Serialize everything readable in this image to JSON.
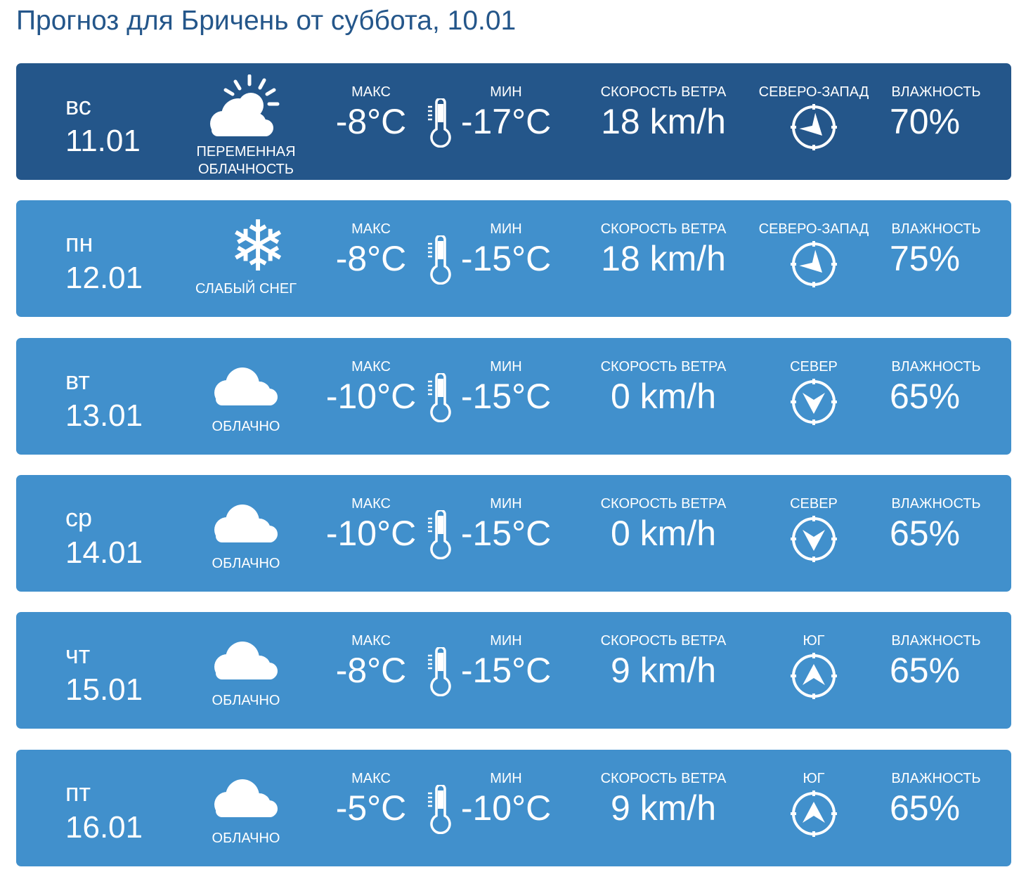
{
  "title": "Прогноз для Бричень от суббота, 10.01",
  "labels": {
    "max": "МАКС",
    "min": "МИН",
    "wind_speed": "СКОРОСТЬ ВЕТРА",
    "humidity": "ВЛАЖНОСТЬ"
  },
  "colors": {
    "current_row": "#24568a",
    "row": "#4190cc",
    "title": "#24568a"
  },
  "days": [
    {
      "day": "вс",
      "date": "11.01",
      "icon": "partly-cloudy-icon",
      "condition": "ПЕРЕМЕННАЯ ОБЛАЧНОСТЬ",
      "max": "-8°C",
      "min": "-17°C",
      "wind": "18 km/h",
      "direction": "СЕВЕРО-ЗАПАД",
      "direction_deg": 315,
      "humidity": "70%",
      "current": true
    },
    {
      "day": "пн",
      "date": "12.01",
      "icon": "snowflake-icon",
      "condition": "СЛАБЫЙ СНЕГ",
      "max": "-8°C",
      "min": "-15°C",
      "wind": "18 km/h",
      "direction": "СЕВЕРО-ЗАПАД",
      "direction_deg": 315,
      "humidity": "75%"
    },
    {
      "day": "вт",
      "date": "13.01",
      "icon": "cloud-icon",
      "condition": "ОБЛАЧНО",
      "max": "-10°C",
      "min": "-15°C",
      "wind": "0 km/h",
      "direction": "СЕВЕР",
      "direction_deg": 0,
      "humidity": "65%"
    },
    {
      "day": "ср",
      "date": "14.01",
      "icon": "cloud-icon",
      "condition": "ОБЛАЧНО",
      "max": "-10°C",
      "min": "-15°C",
      "wind": "0 km/h",
      "direction": "СЕВЕР",
      "direction_deg": 0,
      "humidity": "65%"
    },
    {
      "day": "чт",
      "date": "15.01",
      "icon": "cloud-icon",
      "condition": "ОБЛАЧНО",
      "max": "-8°C",
      "min": "-15°C",
      "wind": "9 km/h",
      "direction": "ЮГ",
      "direction_deg": 180,
      "humidity": "65%"
    },
    {
      "day": "пт",
      "date": "16.01",
      "icon": "cloud-icon",
      "condition": "ОБЛАЧНО",
      "max": "-5°C",
      "min": "-10°C",
      "wind": "9 km/h",
      "direction": "ЮГ",
      "direction_deg": 180,
      "humidity": "65%"
    }
  ]
}
